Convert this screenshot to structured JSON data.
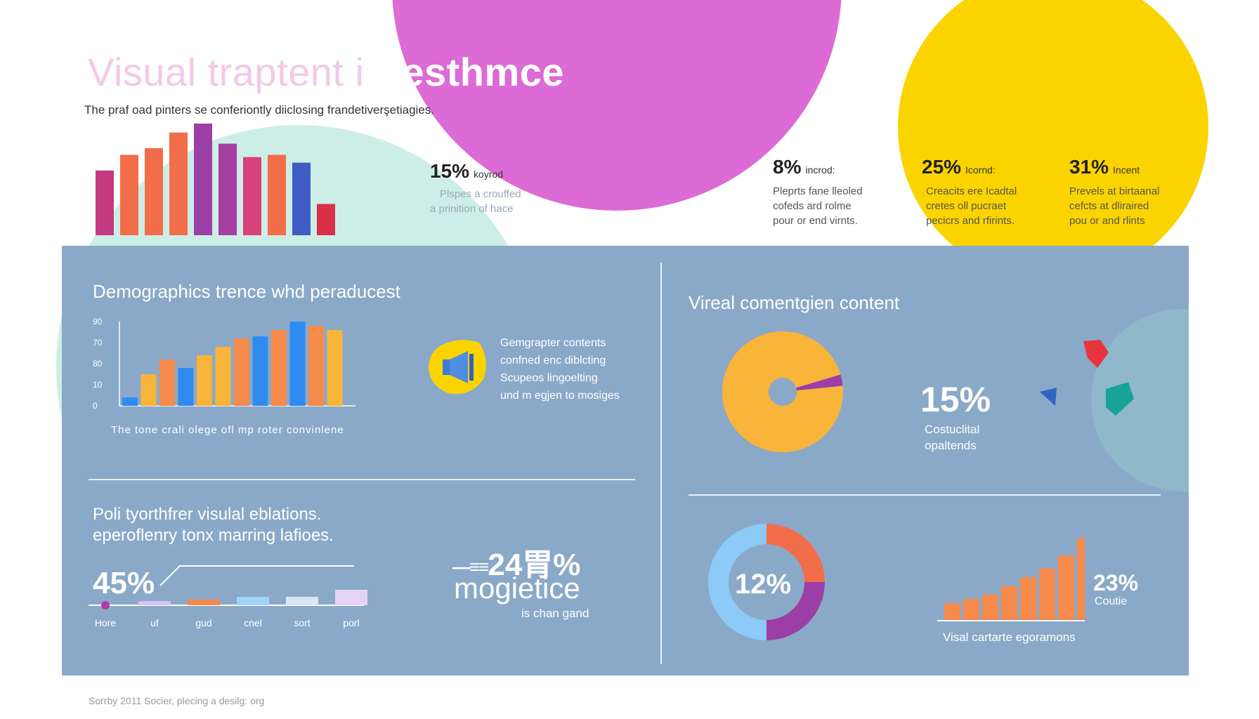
{
  "header": {
    "title_part1": "Visual  traptent i",
    "title_part2": "foesthmce",
    "subtitle": "The praf oad pinters se conferiontly diiclosing frandetiverşetiagies."
  },
  "top_stats": [
    {
      "value": "15%",
      "label": "koyrod",
      "desc": [
        "Plspes a crouffed",
        "a prinition of hace"
      ]
    },
    {
      "value": "8%",
      "label": "incrod:",
      "desc": [
        "Pleprts fane lleoled",
        "cofeds ard rolme",
        "pour or end virnts."
      ]
    },
    {
      "value": "25%",
      "label": "Icornd:",
      "desc": [
        "Creacits ere Icadtal",
        "cretes oll pucraet",
        "pecicrs and rfirints."
      ]
    },
    {
      "value": "31%",
      "label": "Incent",
      "desc": [
        "Prevels at birtaanal",
        "cefcts at dliraired",
        "pou or and rlints"
      ]
    }
  ],
  "demographics": {
    "title": "Demographics trence whd peraducest",
    "caption": "The tone crali olege ofl mp roter convinlene",
    "callout": [
      "Gemgrapter contents",
      "confned enc diblcting",
      "Scupeos lingoelting",
      "und m egjen to mosiges"
    ]
  },
  "viral": {
    "title": "Vireal comentgien content",
    "big_value": "15%",
    "big_label": [
      "Costuclital",
      "opaltends"
    ]
  },
  "poll": {
    "title_lines": [
      "Poli tyorthfrer visulal eblations.",
      "eperoflenry tonx marring lafioes."
    ],
    "big_value": "45%",
    "bar_labels": [
      "Hore",
      "uf",
      "gud",
      "cnel",
      "sort",
      "porl"
    ]
  },
  "magnet": {
    "value": "24胃%",
    "word": "mogietice",
    "sub": "is chan gand"
  },
  "donut2": {
    "value": "12%"
  },
  "growth": {
    "value": "23%",
    "label": "Coutie",
    "caption": "Visal cartarte egoramons"
  },
  "footer": "Sorrby 2011 Socier, plecing a desilg: org",
  "colors": {
    "panel": "#8aa9c8",
    "magenta": "#dc6bd5",
    "yellow": "#fbd400",
    "mint": "#cdeee6",
    "orange": "#f58a4b",
    "gold": "#f9b43a",
    "blue": "#2f8bf0",
    "purple": "#9b3ea6"
  },
  "chart_data": [
    {
      "type": "bar",
      "id": "top-bars",
      "values": [
        58,
        72,
        78,
        92,
        100,
        82,
        70,
        72,
        65,
        28
      ],
      "colors": [
        "#c43a82",
        "#f26d4a",
        "#f26d4a",
        "#f26d4a",
        "#9b3ea6",
        "#a43ea0",
        "#d8417a",
        "#f26d4a",
        "#3f5cc4",
        "#d83048"
      ]
    },
    {
      "type": "bar",
      "id": "demographics-bars",
      "ylabel_ticks": [
        "0",
        "10",
        "80",
        "70",
        "90"
      ],
      "values": [
        4,
        15,
        22,
        18,
        24,
        28,
        32,
        33,
        36,
        40,
        38,
        36
      ],
      "colors": [
        "#2f8bf0",
        "#f9b43a",
        "#f58a4b",
        "#2f8bf0",
        "#f9b43a",
        "#f9b43a",
        "#f58a4b",
        "#2f8bf0",
        "#f58a4b",
        "#2f8bf0",
        "#f58a4b",
        "#f9b43a"
      ],
      "ylim": [
        0,
        40
      ]
    },
    {
      "type": "pie",
      "id": "viral-donut",
      "slices": [
        {
          "value": 97,
          "color": "#f9b43a"
        },
        {
          "value": 3,
          "color": "#9b3ea6"
        }
      ]
    },
    {
      "type": "pie",
      "id": "twelve-donut",
      "slices": [
        {
          "value": 25,
          "color": "#f26d4a"
        },
        {
          "value": 25,
          "color": "#9b3ea6"
        },
        {
          "value": 50,
          "color": "#8ccaf7"
        }
      ]
    },
    {
      "type": "bar",
      "id": "growth-bars",
      "values": [
        20,
        25,
        30,
        40,
        50,
        60,
        75,
        95,
        100
      ],
      "color": "#f58a4b"
    },
    {
      "type": "bar",
      "id": "poll-bars",
      "categories": [
        "Hore",
        "uf",
        "gud",
        "cnel",
        "sort",
        "porl"
      ],
      "values": [
        1,
        6,
        8,
        12,
        12,
        22
      ],
      "colors": [
        "#b23aa6",
        "#d7c4f0",
        "#f58a4b",
        "#9fd4f7",
        "#d6e6f4",
        "#e4d4f4"
      ]
    }
  ]
}
